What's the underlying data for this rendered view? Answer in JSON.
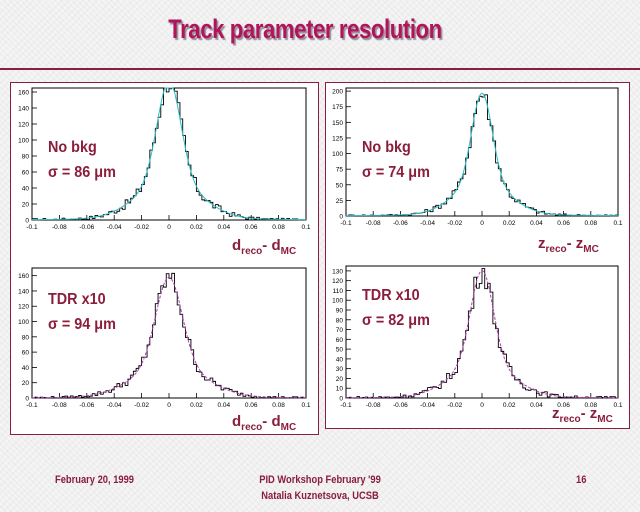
{
  "slide": {
    "title": "Track parameter resolution",
    "footer": {
      "date": "February 20, 1999",
      "event": "PID Workshop February '99",
      "author": "Natalia Kuznetsova, UCSB",
      "page": "16"
    }
  },
  "colors": {
    "title": "#b0145a",
    "accent": "#8a1e3c",
    "fit_cyan": "#2bbfc8",
    "fit_magenta": "#b23fb0"
  },
  "chart_data": [
    {
      "type": "histogram",
      "label1": "No bkg",
      "label2": "σ = 86 μm",
      "xlabel_main": "d",
      "xlabel_sub1": "reco",
      "xlabel_mid": "- d",
      "xlabel_sub2": "MC",
      "xlim": [
        -0.1,
        0.1
      ],
      "ylim": [
        0,
        165
      ],
      "xticks": [
        "-0.1",
        "-0.08",
        "-0.06",
        "-0.04",
        "-0.02",
        "0",
        "0.02",
        "0.04",
        "0.06",
        "0.08",
        "0.1"
      ],
      "yticks": [
        "0",
        "20",
        "40",
        "60",
        "80",
        "100",
        "120",
        "140",
        "160"
      ],
      "sigma": 0.0086,
      "peak": 170,
      "tail": 0.055,
      "fit_color": "#2bbfc8"
    },
    {
      "type": "histogram",
      "label1": "No bkg",
      "label2": "σ = 74 μm",
      "xlabel_main": "z",
      "xlabel_sub1": "reco",
      "xlabel_mid": "- z",
      "xlabel_sub2": "MC",
      "xlim": [
        -0.1,
        0.1
      ],
      "ylim": [
        0,
        205
      ],
      "xticks": [
        "-0.1",
        "-0.08",
        "-0.06",
        "-0.04",
        "-0.02",
        "0",
        "0.02",
        "0.04",
        "0.06",
        "0.08",
        "0.1"
      ],
      "yticks": [
        "0",
        "25",
        "50",
        "75",
        "100",
        "125",
        "150",
        "175",
        "200"
      ],
      "sigma": 0.0074,
      "peak": 193,
      "tail": 0.06,
      "fit_color": "#2bbfc8"
    },
    {
      "type": "histogram",
      "label1": "TDR x10",
      "label2": "σ = 94 μm",
      "xlabel_main": "d",
      "xlabel_sub1": "reco",
      "xlabel_mid": "- d",
      "xlabel_sub2": "MC",
      "xlim": [
        -0.1,
        0.1
      ],
      "ylim": [
        0,
        170
      ],
      "xticks": [
        "-0.1",
        "-0.08",
        "-0.06",
        "-0.04",
        "-0.02",
        "0",
        "0.02",
        "0.04",
        "0.06",
        "0.08",
        "0.1"
      ],
      "yticks": [
        "0",
        "20",
        "40",
        "60",
        "80",
        "100",
        "120",
        "140",
        "160"
      ],
      "sigma": 0.0094,
      "peak": 155,
      "tail": 0.05,
      "fit_color": "#b23fb0"
    },
    {
      "type": "histogram",
      "label1": "TDR x10",
      "label2": "σ = 82 μm",
      "xlabel_main": "z",
      "xlabel_sub1": "reco",
      "xlabel_mid": "- z",
      "xlabel_sub2": "MC",
      "xlim": [
        -0.1,
        0.1
      ],
      "ylim": [
        0,
        135
      ],
      "xticks": [
        "-0.1",
        "-0.08",
        "-0.06",
        "-0.04",
        "-0.02",
        "0",
        "0.02",
        "0.04",
        "0.06",
        "0.08",
        "0.1"
      ],
      "yticks": [
        "0",
        "10",
        "20",
        "30",
        "40",
        "50",
        "60",
        "70",
        "80",
        "90",
        "100",
        "110",
        "120",
        "130"
      ],
      "sigma": 0.0082,
      "peak": 128,
      "tail": 0.05,
      "fit_color": "#b23fb0"
    }
  ]
}
